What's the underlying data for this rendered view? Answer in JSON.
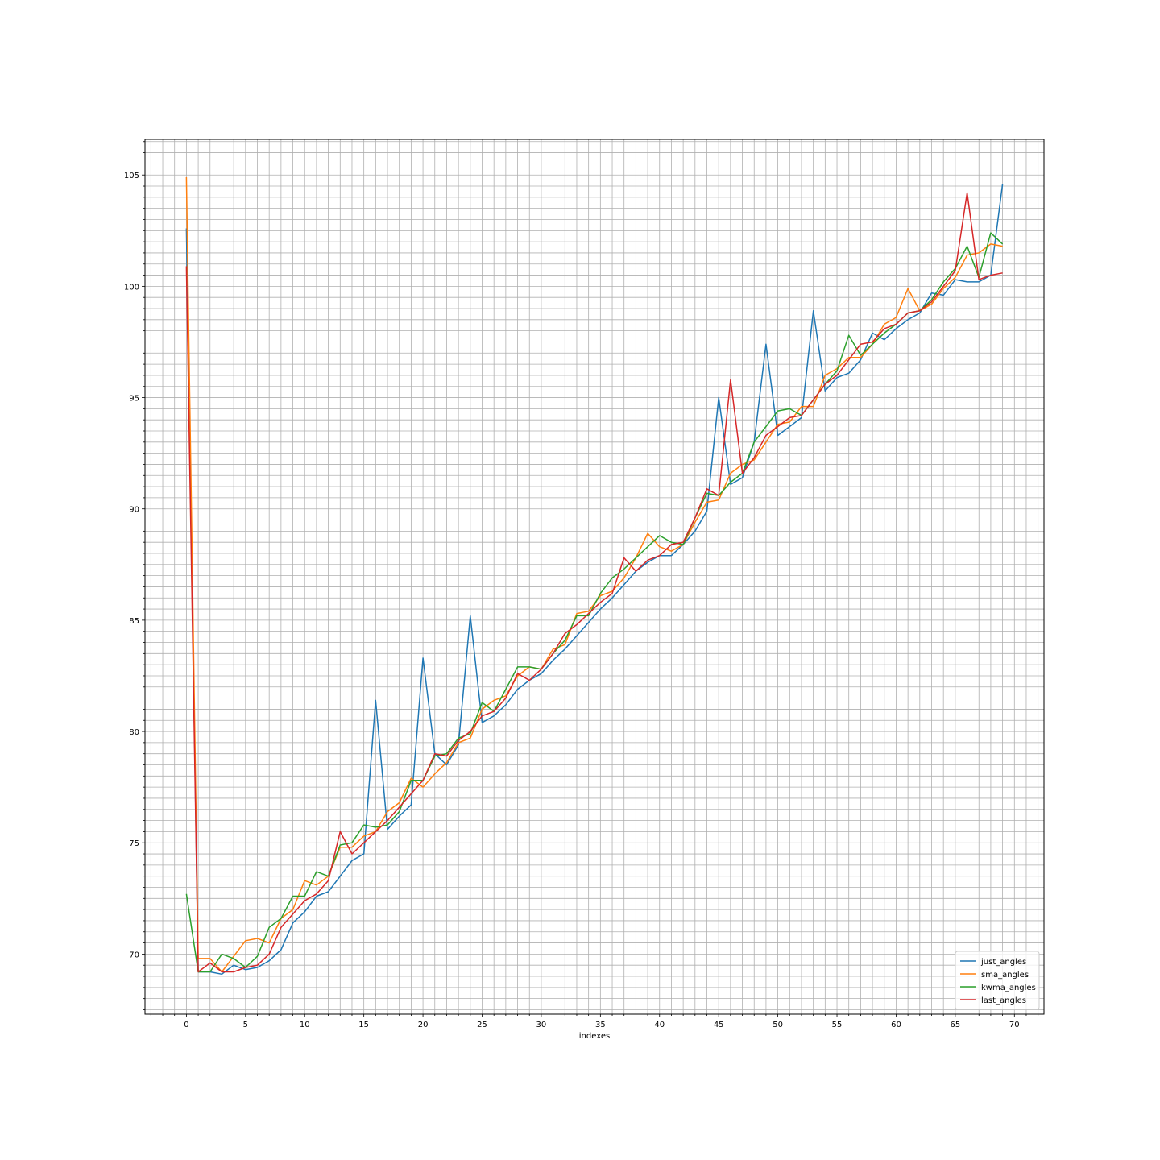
{
  "chart_data": {
    "type": "line",
    "xlabel": "indexes",
    "ylabel": "",
    "xlim": [
      -3.5,
      72.5
    ],
    "ylim": [
      67.3,
      106.6
    ],
    "xticks": [
      0,
      5,
      10,
      15,
      20,
      25,
      30,
      35,
      40,
      45,
      50,
      55,
      60,
      65,
      70
    ],
    "yticks": [
      70,
      75,
      80,
      85,
      90,
      95,
      100,
      105
    ],
    "grid": true,
    "minor_grid": true,
    "legend_position": "lower-right",
    "x": [
      0,
      1,
      2,
      3,
      4,
      5,
      6,
      7,
      8,
      9,
      10,
      11,
      12,
      13,
      14,
      15,
      16,
      17,
      18,
      19,
      20,
      21,
      22,
      23,
      24,
      25,
      26,
      27,
      28,
      29,
      30,
      31,
      32,
      33,
      34,
      35,
      36,
      37,
      38,
      39,
      40,
      41,
      42,
      43,
      44,
      45,
      46,
      47,
      48,
      49,
      50,
      51,
      52,
      53,
      54,
      55,
      56,
      57,
      58,
      59,
      60,
      61,
      62,
      63,
      64,
      65,
      66,
      67,
      68,
      69
    ],
    "series": [
      {
        "name": "just_angles",
        "color": "#1f77b4",
        "values": [
          102.6,
          69.2,
          69.2,
          69.1,
          69.5,
          69.3,
          69.4,
          69.7,
          70.2,
          71.4,
          71.9,
          72.6,
          72.8,
          73.5,
          74.2,
          74.5,
          81.4,
          75.6,
          76.2,
          76.7,
          83.3,
          79.0,
          78.5,
          79.4,
          85.2,
          80.4,
          80.7,
          81.2,
          81.9,
          82.3,
          82.6,
          83.2,
          83.7,
          84.3,
          84.9,
          85.5,
          86.0,
          86.6,
          87.2,
          87.6,
          87.9,
          87.9,
          88.4,
          89.0,
          89.9,
          95.0,
          91.1,
          91.4,
          93.0,
          97.4,
          93.3,
          93.7,
          94.1,
          98.9,
          95.3,
          95.9,
          96.1,
          96.7,
          97.9,
          97.6,
          98.1,
          98.5,
          98.8,
          99.7,
          99.6,
          100.3,
          100.2,
          100.2,
          100.5,
          104.6
        ]
      },
      {
        "name": "sma_angles",
        "color": "#ff7f0e",
        "values": [
          104.9,
          69.8,
          69.8,
          69.2,
          69.9,
          70.6,
          70.7,
          70.5,
          71.6,
          72.0,
          73.3,
          73.1,
          73.5,
          74.8,
          74.8,
          75.3,
          75.5,
          76.4,
          76.8,
          77.9,
          77.5,
          78.1,
          78.6,
          79.5,
          79.7,
          81.0,
          81.4,
          81.6,
          82.5,
          82.9,
          82.8,
          83.7,
          83.9,
          85.3,
          85.4,
          86.1,
          86.3,
          86.9,
          87.8,
          88.9,
          88.3,
          88.1,
          88.4,
          89.4,
          90.3,
          90.4,
          91.6,
          92.0,
          92.2,
          93.0,
          93.8,
          93.9,
          94.6,
          94.6,
          96.0,
          96.3,
          96.8,
          96.8,
          97.4,
          98.3,
          98.6,
          99.9,
          98.9,
          99.2,
          99.9,
          100.4,
          101.4,
          101.5,
          101.9,
          101.8
        ]
      },
      {
        "name": "kwma_angles",
        "color": "#2ca02c",
        "values": [
          72.7,
          69.2,
          69.2,
          70.0,
          69.8,
          69.4,
          69.9,
          71.2,
          71.6,
          72.6,
          72.6,
          73.7,
          73.5,
          74.9,
          75.0,
          75.8,
          75.7,
          75.8,
          76.4,
          77.8,
          77.8,
          78.9,
          79.0,
          79.7,
          79.9,
          81.3,
          80.9,
          81.9,
          82.9,
          82.9,
          82.8,
          83.5,
          84.1,
          85.2,
          85.2,
          86.2,
          86.9,
          87.3,
          87.8,
          88.3,
          88.8,
          88.5,
          88.4,
          89.6,
          90.7,
          90.6,
          91.2,
          91.6,
          93.0,
          93.7,
          94.4,
          94.5,
          94.2,
          94.9,
          95.6,
          96.2,
          97.8,
          96.9,
          97.4,
          97.9,
          98.3,
          98.8,
          98.9,
          99.4,
          100.2,
          100.8,
          101.8,
          100.4,
          102.4,
          101.9
        ]
      },
      {
        "name": "last_angles",
        "color": "#d62728",
        "values": [
          100.9,
          69.2,
          69.6,
          69.2,
          69.2,
          69.4,
          69.5,
          70.0,
          71.2,
          71.8,
          72.4,
          72.7,
          73.3,
          75.5,
          74.5,
          75.0,
          75.5,
          76.0,
          76.6,
          77.2,
          77.8,
          79.0,
          78.9,
          79.6,
          80.0,
          80.7,
          80.9,
          81.5,
          82.6,
          82.3,
          82.8,
          83.5,
          84.4,
          84.8,
          85.3,
          85.8,
          86.2,
          87.8,
          87.2,
          87.7,
          87.9,
          88.4,
          88.5,
          89.6,
          90.9,
          90.6,
          95.8,
          91.6,
          92.3,
          93.3,
          93.7,
          94.1,
          94.2,
          94.9,
          95.6,
          96.0,
          96.7,
          97.4,
          97.5,
          98.1,
          98.3,
          98.8,
          98.9,
          99.3,
          100.0,
          100.7,
          104.2,
          100.3,
          100.5,
          100.6
        ]
      }
    ]
  }
}
